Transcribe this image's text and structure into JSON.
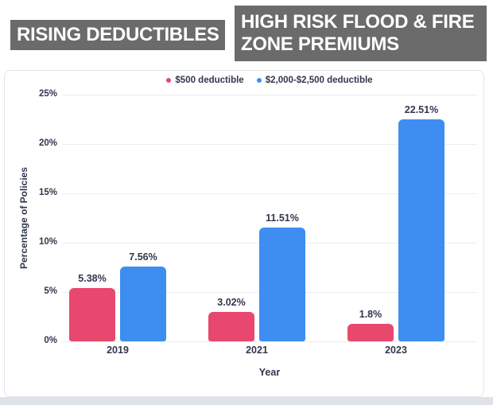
{
  "header": {
    "title_left": "RISING DEDUCTIBLES",
    "title_right_line1": "HIGH RISK FLOOD & FIRE",
    "title_right_line2": "ZONE PREMIUMS"
  },
  "colors": {
    "header_bg": "#6B6B6B",
    "pink": "#E8486E",
    "blue": "#3E8EF1",
    "text": "#31374E",
    "grid": "#EDEDF0",
    "card_border": "#E3E7EB",
    "page_bottom": "#DFE3E8"
  },
  "chart_data": {
    "type": "bar",
    "title": "",
    "categories": [
      "2019",
      "2021",
      "2023"
    ],
    "series": [
      {
        "name": "$500 deductible",
        "color_key": "pink",
        "values": [
          5.38,
          3.02,
          1.8
        ],
        "labels": [
          "5.38%",
          "3.02%",
          "1.8%"
        ]
      },
      {
        "name": "$2,000-$2,500 deductible",
        "color_key": "blue",
        "values": [
          7.56,
          11.51,
          22.51
        ],
        "labels": [
          "7.56%",
          "11.51%",
          "22.51%"
        ]
      }
    ],
    "xlabel": "Year",
    "ylabel": "Percentage of Policies",
    "ylim": [
      0,
      25
    ],
    "ytick_values": [
      0,
      5,
      10,
      15,
      20,
      25
    ],
    "ytick_labels": [
      "0%",
      "5%",
      "10%",
      "15%",
      "20%",
      "25%"
    ],
    "grid": true,
    "legend_position": "top"
  }
}
